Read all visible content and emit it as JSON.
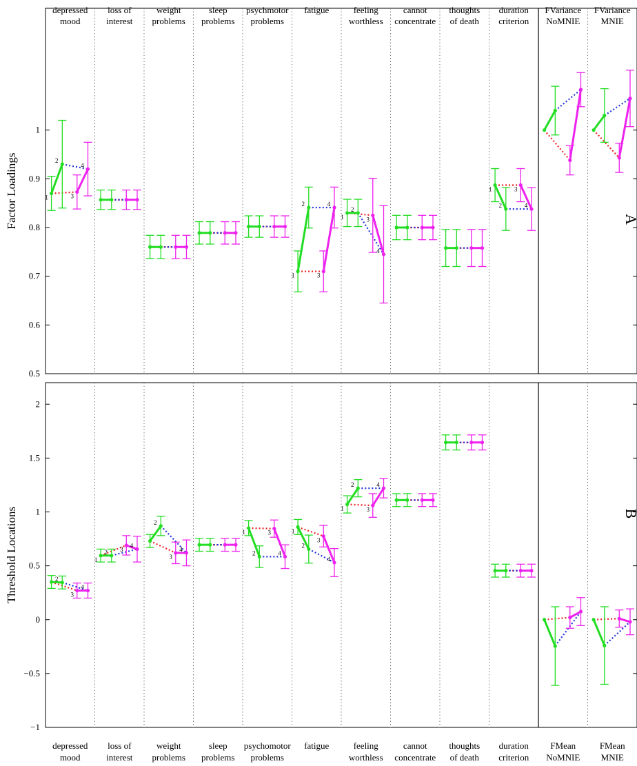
{
  "chart_data": [
    {
      "type": "line",
      "panel_letter": "A",
      "ylabel": "Factor Loadings",
      "ylim": [
        0.5,
        1.25
      ],
      "yticks": [
        0.5,
        0.6,
        0.7,
        0.8,
        0.9,
        1
      ],
      "yticklabels": [
        "0.5",
        "0.6",
        "0.7",
        "0.8",
        "0.9",
        "1"
      ],
      "columns": [
        {
          "label": [
            "depressed",
            "mood"
          ],
          "values": [
            0.87,
            0.93,
            0.873,
            0.92
          ],
          "err": [
            0.035,
            0.09,
            0.035,
            0.055
          ],
          "point_labels": [
            "1",
            "2",
            "3",
            "4"
          ]
        },
        {
          "label": [
            "loss of",
            "interest"
          ],
          "values": [
            0.857,
            0.857,
            0.857,
            0.857
          ],
          "err": [
            0.02,
            0.02,
            0.02,
            0.02
          ],
          "point_labels": [
            "",
            "",
            "",
            ""
          ]
        },
        {
          "label": [
            "weight",
            "problems"
          ],
          "values": [
            0.76,
            0.76,
            0.76,
            0.76
          ],
          "err": [
            0.024,
            0.024,
            0.024,
            0.024
          ],
          "point_labels": [
            "",
            "",
            "",
            ""
          ]
        },
        {
          "label": [
            "sleep",
            "problems"
          ],
          "values": [
            0.789,
            0.789,
            0.789,
            0.789
          ],
          "err": [
            0.023,
            0.023,
            0.023,
            0.023
          ],
          "point_labels": [
            "",
            "",
            "",
            ""
          ]
        },
        {
          "label": [
            "psychmotor",
            "problems"
          ],
          "values": [
            0.802,
            0.802,
            0.802,
            0.802
          ],
          "err": [
            0.022,
            0.022,
            0.022,
            0.022
          ],
          "point_labels": [
            "",
            "",
            "",
            ""
          ]
        },
        {
          "label": [
            "fatigue",
            ""
          ],
          "values": [
            0.71,
            0.841,
            0.71,
            0.841
          ],
          "err": [
            0.042,
            0.042,
            0.042,
            0.042
          ],
          "point_labels": [
            "1",
            "2",
            "3",
            "4"
          ]
        },
        {
          "label": [
            "feeling",
            "worthless"
          ],
          "values": [
            0.83,
            0.83,
            0.825,
            0.745
          ],
          "err": [
            0.028,
            0.028,
            0.076,
            0.1
          ],
          "point_labels": [
            "1",
            "2",
            "3",
            "4"
          ]
        },
        {
          "label": [
            "cannot",
            "concentrate"
          ],
          "values": [
            0.8,
            0.8,
            0.8,
            0.8
          ],
          "err": [
            0.025,
            0.025,
            0.025,
            0.025
          ],
          "point_labels": [
            "",
            "",
            "",
            ""
          ]
        },
        {
          "label": [
            "thoughts",
            "of death"
          ],
          "values": [
            0.758,
            0.758,
            0.758,
            0.758
          ],
          "err": [
            0.038,
            0.038,
            0.038,
            0.038
          ],
          "point_labels": [
            "",
            "",
            "",
            ""
          ]
        },
        {
          "label": [
            "duration",
            "criterion"
          ],
          "values": [
            0.887,
            0.838,
            0.887,
            0.838
          ],
          "err": [
            0.034,
            0.044,
            0.034,
            0.044
          ],
          "point_labels": [
            "1",
            "2",
            "3",
            "4"
          ]
        },
        {
          "label": [
            "FVariance",
            "NoMNIE"
          ],
          "values": [
            1.0,
            1.04,
            0.938,
            1.083
          ],
          "err": [
            0,
            0.05,
            0.03,
            0.035
          ],
          "point_labels": [
            "",
            "",
            "",
            ""
          ]
        },
        {
          "label": [
            "FVariance",
            "MNIE"
          ],
          "values": [
            1.0,
            1.03,
            0.943,
            1.065
          ],
          "err": [
            0,
            0.055,
            0.03,
            0.058
          ],
          "point_labels": [
            "",
            "",
            "",
            ""
          ]
        }
      ]
    },
    {
      "type": "line",
      "panel_letter": "B",
      "ylabel": "Threshold Locations",
      "ylim": [
        -1,
        2.2
      ],
      "yticks": [
        -1,
        -0.5,
        0,
        0.5,
        1,
        1.5,
        2
      ],
      "yticklabels": [
        "−1",
        "−0.5",
        "0",
        "0.5",
        "1",
        "1.5",
        "2"
      ],
      "columns": [
        {
          "label": [
            "depressed",
            "mood"
          ],
          "values": [
            0.35,
            0.345,
            0.27,
            0.27
          ],
          "err": [
            0.06,
            0.06,
            0.07,
            0.07
          ],
          "point_labels": [
            "",
            "2",
            "3",
            "4"
          ]
        },
        {
          "label": [
            "loss of",
            "interest"
          ],
          "values": [
            0.595,
            0.595,
            0.69,
            0.655
          ],
          "err": [
            0.06,
            0.06,
            0.09,
            0.12
          ],
          "point_labels": [
            "1",
            "2",
            "3",
            "4"
          ]
        },
        {
          "label": [
            "weight",
            "problems"
          ],
          "values": [
            0.73,
            0.87,
            0.62,
            0.62
          ],
          "err": [
            0.06,
            0.09,
            0.1,
            0.12
          ],
          "point_labels": [
            "",
            "2",
            "3",
            "4"
          ]
        },
        {
          "label": [
            "sleep",
            "problems"
          ],
          "values": [
            0.695,
            0.695,
            0.695,
            0.695
          ],
          "err": [
            0.06,
            0.06,
            0.06,
            0.06
          ],
          "point_labels": [
            "",
            "",
            "",
            ""
          ]
        },
        {
          "label": [
            "psychomotor",
            "problems"
          ],
          "values": [
            0.85,
            0.585,
            0.845,
            0.585
          ],
          "err": [
            0.07,
            0.1,
            0.08,
            0.11
          ],
          "point_labels": [
            "1",
            "2",
            "3",
            "4"
          ]
        },
        {
          "label": [
            "fatigue",
            ""
          ],
          "values": [
            0.86,
            0.655,
            0.775,
            0.53
          ],
          "err": [
            0.07,
            0.13,
            0.1,
            0.13
          ],
          "point_labels": [
            "1",
            "2",
            "3",
            "4"
          ]
        },
        {
          "label": [
            "feeling",
            "worthless"
          ],
          "values": [
            1.07,
            1.22,
            1.06,
            1.22
          ],
          "err": [
            0.08,
            0.08,
            0.11,
            0.09
          ],
          "point_labels": [
            "1",
            "2",
            "3",
            "4"
          ]
        },
        {
          "label": [
            "cannot",
            "concentrate"
          ],
          "values": [
            1.11,
            1.11,
            1.11,
            1.11
          ],
          "err": [
            0.06,
            0.06,
            0.06,
            0.06
          ],
          "point_labels": [
            "",
            "",
            "",
            ""
          ]
        },
        {
          "label": [
            "thoughts",
            "of death"
          ],
          "values": [
            1.645,
            1.645,
            1.645,
            1.645
          ],
          "err": [
            0.07,
            0.07,
            0.07,
            0.07
          ],
          "point_labels": [
            "",
            "",
            "",
            ""
          ]
        },
        {
          "label": [
            "duration",
            "criterion"
          ],
          "values": [
            0.455,
            0.455,
            0.455,
            0.455
          ],
          "err": [
            0.06,
            0.06,
            0.06,
            0.06
          ],
          "point_labels": [
            "",
            "",
            "",
            ""
          ]
        },
        {
          "label": [
            "FMean",
            "NoMNIE"
          ],
          "values": [
            0.0,
            -0.245,
            0.02,
            0.075
          ],
          "err": [
            0,
            0.365,
            0.1,
            0.13
          ],
          "point_labels": [
            "",
            "",
            "",
            ""
          ]
        },
        {
          "label": [
            "FMean",
            "MNIE"
          ],
          "values": [
            0.0,
            -0.24,
            0.01,
            -0.02
          ],
          "err": [
            0,
            0.36,
            0.08,
            0.12
          ],
          "point_labels": [
            "",
            "",
            "",
            ""
          ]
        }
      ]
    }
  ],
  "colors": {
    "series_1_2": "#22dd22",
    "series_3_4": "#ee22ee",
    "link_1_3": "#ee2222",
    "link_2_4": "#2233dd",
    "grid": "#777777",
    "axis": "#000000"
  }
}
